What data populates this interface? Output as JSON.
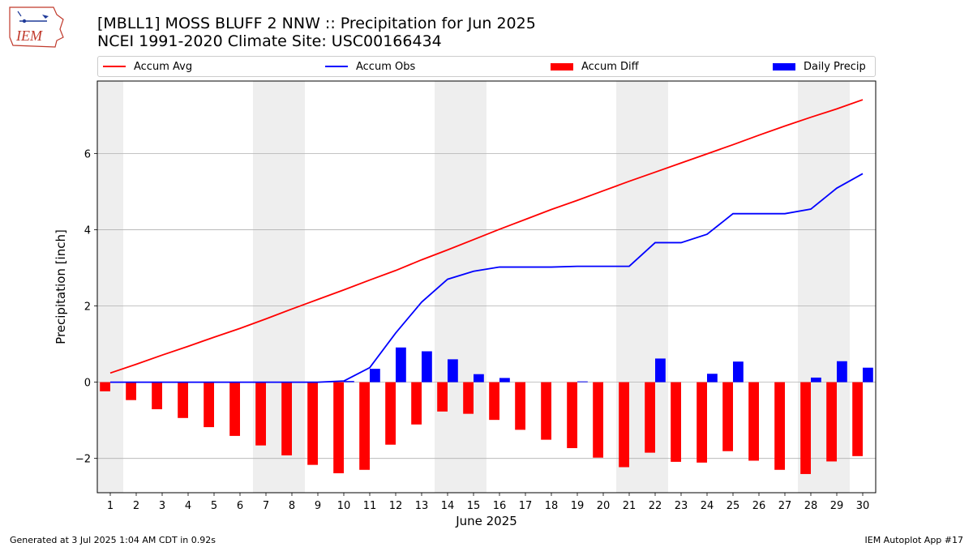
{
  "header": {
    "title_line1": "[MBLL1] MOSS BLUFF 2 NNW :: Precipitation for Jun 2025",
    "title_line2": "NCEI 1991-2020 Climate Site: USC00166434",
    "logo_text": "IEM"
  },
  "footer": {
    "generated": "Generated at 3 Jul 2025 1:04 AM CDT in 0.92s",
    "app": "IEM Autoplot App #17"
  },
  "colors": {
    "avg": "#ff0000",
    "obs": "#0000ff",
    "diff": "#ff0000",
    "daily": "#0000ff",
    "weekend_shade": "#eeeeee",
    "grid": "#b0b0b0"
  },
  "chart_data": {
    "type": "bar",
    "xlabel": "June 2025",
    "ylabel": "Precipitation [inch]",
    "x": [
      1,
      2,
      3,
      4,
      5,
      6,
      7,
      8,
      9,
      10,
      11,
      12,
      13,
      14,
      15,
      16,
      17,
      18,
      19,
      20,
      21,
      22,
      23,
      24,
      25,
      26,
      27,
      28,
      29,
      30
    ],
    "xlim": [
      0.5,
      30.5
    ],
    "ylim": [
      -2.9,
      7.9
    ],
    "yticks": [
      -2,
      0,
      2,
      4,
      6
    ],
    "grid_y": true,
    "legend": "top",
    "weekend_shaded_days": [
      1,
      7,
      8,
      14,
      15,
      21,
      22,
      28,
      29
    ],
    "series": [
      {
        "name": "Accum Avg",
        "kind": "line",
        "values": [
          0.24,
          0.47,
          0.71,
          0.94,
          1.18,
          1.41,
          1.66,
          1.92,
          2.17,
          2.42,
          2.68,
          2.93,
          3.21,
          3.47,
          3.74,
          4.01,
          4.27,
          4.53,
          4.77,
          5.02,
          5.27,
          5.51,
          5.75,
          5.99,
          6.23,
          6.48,
          6.72,
          6.95,
          7.17,
          7.41
        ]
      },
      {
        "name": "Accum Obs",
        "kind": "line",
        "values": [
          0,
          0,
          0,
          0,
          0,
          0,
          0,
          0,
          0,
          0.03,
          0.38,
          1.29,
          2.1,
          2.7,
          2.91,
          3.02,
          3.02,
          3.02,
          3.04,
          3.04,
          3.04,
          3.66,
          3.66,
          3.88,
          4.42,
          4.42,
          4.42,
          4.54,
          5.09,
          5.47
        ]
      },
      {
        "name": "Accum Diff",
        "kind": "bar",
        "offset": "left",
        "values": [
          -0.24,
          -0.47,
          -0.71,
          -0.94,
          -1.18,
          -1.41,
          -1.66,
          -1.92,
          -2.17,
          -2.39,
          -2.3,
          -1.64,
          -1.11,
          -0.77,
          -0.83,
          -0.99,
          -1.25,
          -1.51,
          -1.73,
          -1.98,
          -2.23,
          -1.85,
          -2.09,
          -2.11,
          -1.81,
          -2.06,
          -2.3,
          -2.41,
          -2.08,
          -1.94
        ]
      },
      {
        "name": "Daily Precip",
        "kind": "bar",
        "offset": "right",
        "values": [
          0,
          0,
          0,
          0,
          0,
          0,
          0,
          0,
          0,
          0.03,
          0.35,
          0.91,
          0.81,
          0.6,
          0.21,
          0.11,
          0,
          0,
          0.02,
          0,
          0,
          0.62,
          0,
          0.22,
          0.54,
          0,
          0,
          0.12,
          0.55,
          0.38
        ]
      }
    ]
  }
}
